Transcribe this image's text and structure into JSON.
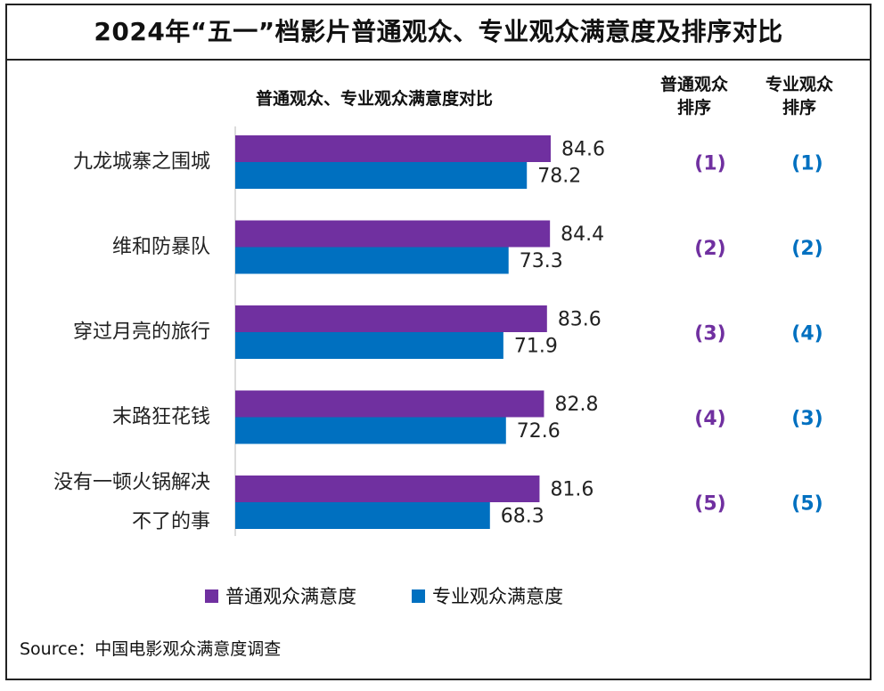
{
  "title": "2024年“五一”档影片普通观众、专业观众满意度及排序对比",
  "subtitle": "普通观众、专业观众满意度对比",
  "rank_headers": {
    "general": [
      "普通观众",
      "排序"
    ],
    "professional": [
      "专业观众",
      "排序"
    ]
  },
  "colors": {
    "general": "#7030A0",
    "professional": "#0070C0",
    "rank_general": "#7030A0",
    "rank_professional": "#0070C0"
  },
  "legend": {
    "general": "普通观众满意度",
    "professional": "专业观众满意度"
  },
  "source": "Source：中国电影观众满意度调查",
  "chart_data": {
    "type": "bar",
    "orientation": "horizontal",
    "categories": [
      [
        "九龙城寨之围城"
      ],
      [
        "维和防暴队"
      ],
      [
        "穿过月亮的旅行"
      ],
      [
        "末路狂花钱"
      ],
      [
        "没有一顿火锅解决",
        "不了的事"
      ]
    ],
    "series": [
      {
        "name": "普通观众满意度",
        "values": [
          84.6,
          84.4,
          83.6,
          82.8,
          81.6
        ]
      },
      {
        "name": "专业观众满意度",
        "values": [
          78.2,
          73.3,
          71.9,
          72.6,
          68.3
        ]
      }
    ],
    "ranks": {
      "general": [
        "(1)",
        "(2)",
        "(3)",
        "(4)",
        "(5)"
      ],
      "professional": [
        "(1)",
        "(2)",
        "(4)",
        "(3)",
        "(5)"
      ]
    },
    "xlim": [
      0,
      90
    ]
  }
}
